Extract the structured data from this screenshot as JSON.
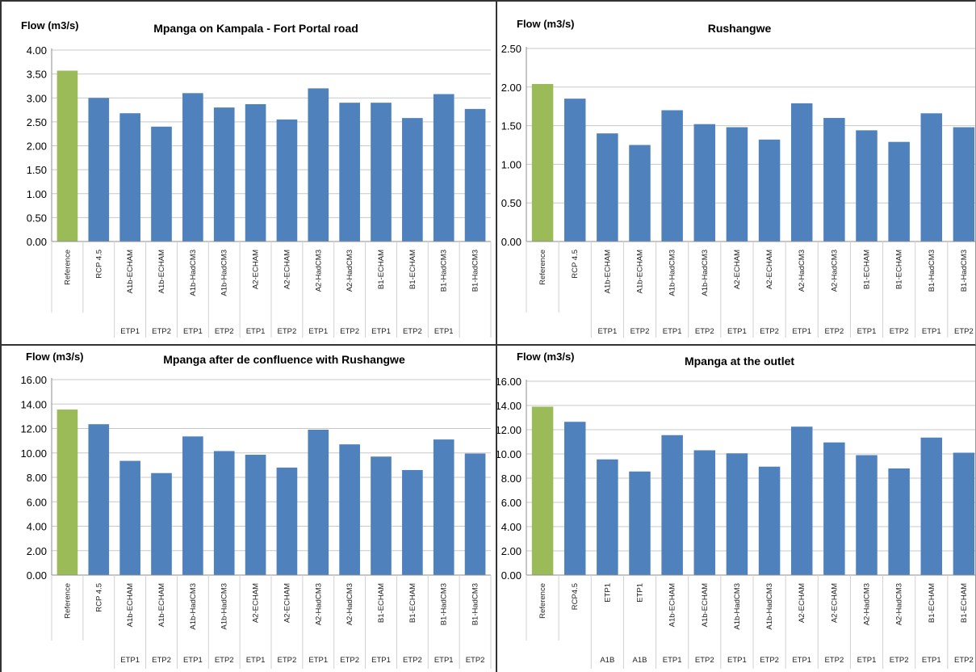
{
  "colors": {
    "reference": "#9BBB59",
    "scenario": "#4F81BD",
    "grid": "#c8c8c8",
    "axis": "#8c8c8c"
  },
  "chart_data": [
    {
      "type": "bar",
      "title": "Mpanga on Kampala - Fort Portal road",
      "ylabel": "Flow (m3/s)",
      "ylim": [
        0,
        4
      ],
      "yticks": [
        "0.00",
        "0.50",
        "1.00",
        "1.50",
        "2.00",
        "2.50",
        "3.00",
        "3.50",
        "4.00"
      ],
      "grid": true,
      "categories": [
        "Reference",
        "RCP 4.5",
        "A1b-ECHAM",
        "A1b-ECHAM",
        "A1b-HadCM3",
        "A1b-HadCM3",
        "A2-ECHAM",
        "A2-ECHAM",
        "A2-HadCM3",
        "A2-HadCM3",
        "B1-ECHAM",
        "B1-ECHAM",
        "B1-HadCM3",
        "B1-HadCM3"
      ],
      "values": [
        3.57,
        3.0,
        2.68,
        2.4,
        3.1,
        2.8,
        2.87,
        2.55,
        3.2,
        2.9,
        2.9,
        2.58,
        3.08,
        2.77
      ],
      "group_labels": [
        "",
        "",
        "ETP1",
        "ETP2",
        "ETP1",
        "ETP2",
        "ETP1",
        "ETP2",
        "ETP1",
        "ETP2",
        "ETP1",
        "ETP2",
        "ETP1",
        ""
      ]
    },
    {
      "type": "bar",
      "title": "Rushangwe",
      "ylabel": "Flow (m3/s)",
      "ylim": [
        0,
        2.5
      ],
      "yticks": [
        "0.00",
        "0.50",
        "1.00",
        "1.50",
        "2.00",
        "2.50"
      ],
      "grid": true,
      "categories": [
        "Reference",
        "RCP 4.5",
        "A1b-ECHAM",
        "A1b-ECHAM",
        "A1b-HadCM3",
        "A1b-HadCM3",
        "A2-ECHAM",
        "A2-ECHAM",
        "A2-HadCM3",
        "A2-HadCM3",
        "B1-ECHAM",
        "B1-ECHAM",
        "B1-HadCM3",
        "B1-HadCM3"
      ],
      "values": [
        2.04,
        1.85,
        1.4,
        1.25,
        1.7,
        1.52,
        1.48,
        1.32,
        1.79,
        1.6,
        1.44,
        1.29,
        1.66,
        1.48
      ],
      "group_labels": [
        "",
        "",
        "ETP1",
        "ETP2",
        "ETP1",
        "ETP2",
        "ETP1",
        "ETP2",
        "ETP1",
        "ETP2",
        "ETP1",
        "ETP2",
        "ETP1",
        "ETP2"
      ]
    },
    {
      "type": "bar",
      "title": "Mpanga after de confluence with Rushangwe",
      "ylabel": "Flow (m3/s)",
      "ylim": [
        0,
        16
      ],
      "yticks": [
        "0.00",
        "2.00",
        "4.00",
        "6.00",
        "8.00",
        "10.00",
        "12.00",
        "14.00",
        "16.00"
      ],
      "grid": true,
      "categories": [
        "Reference",
        "RCP 4.5",
        "A1b-ECHAM",
        "A1b-ECHAM",
        "A1b-HadCM3",
        "A1b-HadCM3",
        "A2-ECHAM",
        "A2-ECHAM",
        "A2-HadCM3",
        "A2-HadCM3",
        "B1-ECHAM",
        "B1-ECHAM",
        "B1-HadCM3",
        "B1-HadCM3"
      ],
      "values": [
        13.55,
        12.35,
        9.35,
        8.35,
        11.35,
        10.15,
        9.85,
        8.8,
        11.9,
        10.7,
        9.7,
        8.6,
        11.1,
        9.95
      ],
      "group_labels": [
        "",
        "",
        "ETP1",
        "ETP2",
        "ETP1",
        "ETP2",
        "ETP1",
        "ETP2",
        "ETP1",
        "ETP2",
        "ETP1",
        "ETP2",
        "ETP1",
        "ETP2"
      ]
    },
    {
      "type": "bar",
      "title": "Mpanga at the outlet",
      "ylabel": "Flow (m3/s)",
      "ylim": [
        0,
        16
      ],
      "yticks": [
        "0.00",
        "2.00",
        "4.00",
        "6.00",
        "8.00",
        "10.00",
        "12.00",
        "14.00",
        "16.00"
      ],
      "grid": true,
      "categories": [
        "Reference",
        "RCP4.5",
        "ETP1",
        "ETP1",
        "A1b-ECHAM",
        "A1b-ECHAM",
        "A1b-HadCM3",
        "A1b-HadCM3",
        "A2-ECHAM",
        "A2-ECHAM",
        "A2-HadCM3",
        "A2-HadCM3",
        "B1-ECHAM",
        "B1-ECHAM"
      ],
      "values": [
        13.9,
        12.65,
        9.55,
        8.55,
        11.55,
        10.3,
        10.05,
        8.95,
        12.25,
        10.95,
        9.9,
        8.8,
        11.35,
        10.1
      ],
      "group_labels": [
        "",
        "",
        "A1B",
        "A1B",
        "ETP1",
        "ETP2",
        "ETP1",
        "ETP2",
        "ETP1",
        "ETP2",
        "ETP1",
        "ETP2",
        "ETP1",
        "ETP2"
      ]
    }
  ]
}
